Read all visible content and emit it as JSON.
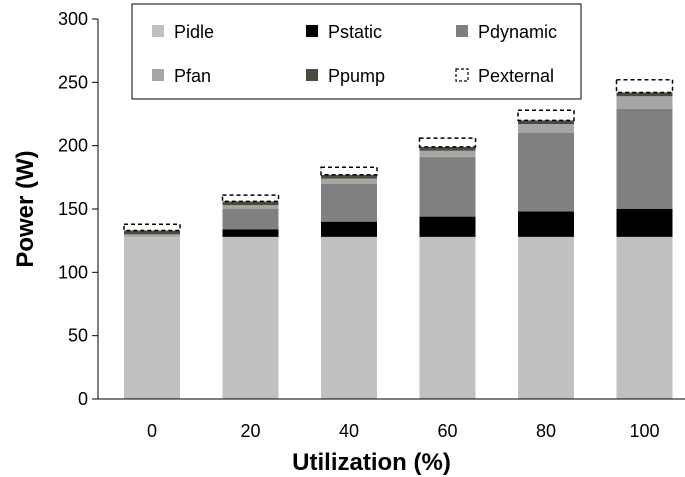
{
  "chart_data": {
    "type": "bar",
    "stacked": true,
    "xlabel": "Utilization (%)",
    "ylabel": "Power (W)",
    "ylim": [
      0,
      300
    ],
    "yticks": [
      0,
      50,
      100,
      150,
      200,
      250,
      300
    ],
    "grid": false,
    "legend_position": "top",
    "categories": [
      "0",
      "20",
      "40",
      "60",
      "80",
      "100"
    ],
    "series": [
      {
        "name": "Pidle",
        "values": [
          128,
          128,
          128,
          128,
          128,
          128
        ],
        "color": "#c0c0c0",
        "style": "solid"
      },
      {
        "name": "Pstatic",
        "values": [
          0,
          6,
          12,
          16,
          20,
          22
        ],
        "color": "#000000",
        "style": "solid"
      },
      {
        "name": "Pdynamic",
        "values": [
          0,
          16,
          30,
          47,
          62,
          79
        ],
        "color": "#808080",
        "style": "solid"
      },
      {
        "name": "Pfan",
        "values": [
          2,
          3,
          4,
          5,
          7,
          10
        ],
        "color": "#a6a6a6",
        "style": "solid"
      },
      {
        "name": "Ppump",
        "values": [
          3,
          3,
          3,
          3,
          3,
          3
        ],
        "color": "#4a4a3e",
        "style": "solid"
      },
      {
        "name": "Pexternal",
        "values": [
          5,
          5,
          6,
          7,
          8,
          10
        ],
        "color": "#ffffff",
        "style": "dashed"
      }
    ]
  }
}
